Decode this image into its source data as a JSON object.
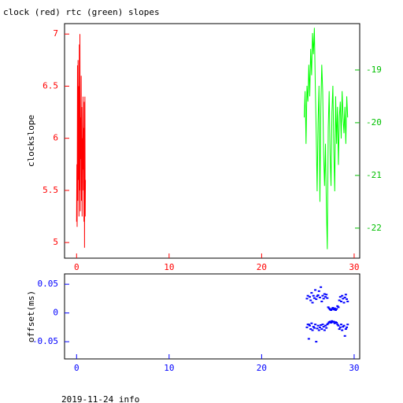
{
  "chart_data": [
    {
      "type": "line",
      "title": "clock (red) rtc (green) slopes",
      "ylabel": "clockslope",
      "xlim": [
        -1.3,
        30.6
      ],
      "xticks": [
        0,
        10,
        20,
        30
      ],
      "ylim": [
        4.85,
        7.1
      ],
      "yticks": [
        5,
        5.5,
        6,
        6.5,
        7
      ],
      "y2lim": [
        -22.57,
        -18.12
      ],
      "y2ticks": [
        -22,
        -21,
        -20,
        -19
      ],
      "series": [
        {
          "color": "#ff0000",
          "x": [
            0.0,
            0.03,
            0.06,
            0.1,
            0.13,
            0.16,
            0.2,
            0.23,
            0.26,
            0.3,
            0.33,
            0.36,
            0.4,
            0.43,
            0.46,
            0.5,
            0.53,
            0.56,
            0.6,
            0.63,
            0.66,
            0.7,
            0.73,
            0.76,
            0.8,
            0.83,
            0.86,
            0.9,
            0.93,
            0.96
          ],
          "values": [
            5.2,
            5.75,
            5.15,
            6.7,
            5.4,
            6.75,
            5.6,
            6.5,
            5.25,
            6.9,
            5.5,
            7.0,
            5.3,
            6.2,
            5.8,
            6.6,
            5.4,
            6.3,
            5.25,
            6.0,
            5.7,
            6.4,
            5.5,
            6.1,
            5.2,
            6.35,
            4.95,
            6.4,
            5.25,
            5.6
          ]
        },
        {
          "color": "#00ff00",
          "axis": "y2",
          "x": [
            24.6,
            24.7,
            24.8,
            24.9,
            25.0,
            25.1,
            25.2,
            25.3,
            25.4,
            25.5,
            25.6,
            25.7,
            25.8,
            25.9,
            26.0,
            26.1,
            26.2,
            26.3,
            26.4,
            26.5,
            26.6,
            26.7,
            26.8,
            26.9,
            27.0,
            27.1,
            27.2,
            27.3,
            27.4,
            27.5,
            27.6,
            27.7,
            27.8,
            27.9,
            28.0,
            28.1,
            28.2,
            28.3,
            28.4,
            28.5,
            28.6,
            28.7,
            28.8,
            28.9,
            29.0,
            29.1,
            29.2,
            29.3
          ],
          "values": [
            -19.9,
            -19.4,
            -20.4,
            -19.3,
            -19.6,
            -18.9,
            -19.5,
            -18.6,
            -19.1,
            -18.3,
            -18.7,
            -18.2,
            -19.3,
            -20.2,
            -21.3,
            -20.0,
            -19.3,
            -21.5,
            -19.7,
            -18.9,
            -19.4,
            -20.6,
            -21.2,
            -20.4,
            -21.6,
            -22.4,
            -20.1,
            -19.4,
            -20.6,
            -21.2,
            -19.8,
            -19.3,
            -20.5,
            -21.3,
            -19.5,
            -20.4,
            -19.7,
            -20.8,
            -19.9,
            -19.6,
            -20.3,
            -19.4,
            -19.9,
            -20.2,
            -19.7,
            -20.4,
            -19.5,
            -19.9
          ]
        }
      ]
    },
    {
      "type": "scatter",
      "ylabel": "offset(ms)",
      "xlim": [
        -1.3,
        30.6
      ],
      "xticks": [
        0,
        10,
        20,
        30
      ],
      "ylim": [
        -0.08,
        0.068
      ],
      "yticks": [
        -0.05,
        0,
        0.05
      ],
      "series": [
        {
          "color": "#0000ff",
          "x": [
            24.9,
            25.0,
            25.1,
            25.2,
            25.3,
            25.4,
            25.5,
            25.6,
            25.7,
            25.8,
            25.9,
            26.0,
            26.1,
            26.2,
            26.3,
            26.4,
            26.5,
            26.6,
            26.7,
            26.8,
            26.9,
            27.0,
            27.1,
            27.2,
            27.3,
            27.4,
            27.5,
            27.6,
            27.7,
            27.8,
            27.9,
            28.0,
            28.1,
            28.2,
            28.3,
            28.4,
            28.5,
            28.6,
            28.7,
            28.8,
            28.9,
            29.0,
            29.1,
            29.2,
            29.3,
            24.9,
            25.0,
            25.1,
            25.2,
            25.3,
            25.4,
            25.5,
            25.6,
            25.7,
            25.8,
            25.9,
            26.0,
            26.1,
            26.2,
            26.3,
            26.4,
            26.5,
            26.6,
            26.7,
            26.8,
            26.9,
            27.0,
            27.1,
            27.2,
            27.3,
            27.4,
            27.5,
            27.6,
            27.7,
            27.8,
            27.9,
            28.0,
            28.1,
            28.2,
            28.3,
            28.4,
            28.5,
            28.6,
            28.7,
            28.8,
            28.9,
            29.0,
            29.1,
            29.2,
            29.3
          ],
          "values": [
            0.025,
            0.03,
            -0.02,
            0.028,
            0.022,
            0.035,
            0.018,
            0.03,
            0.026,
            0.04,
            0.024,
            0.029,
            0.031,
            0.038,
            0.027,
            0.045,
            0.02,
            0.03,
            0.025,
            0.033,
            0.028,
            0.032,
            0.026,
            0.01,
            0.008,
            0.006,
            0.005,
            0.007,
            0.009,
            0.006,
            0.008,
            0.005,
            0.007,
            0.012,
            0.01,
            0.022,
            0.028,
            0.02,
            0.03,
            0.025,
            0.018,
            0.027,
            0.032,
            0.024,
            0.02,
            -0.025,
            -0.02,
            -0.045,
            -0.022,
            -0.028,
            -0.018,
            -0.03,
            -0.024,
            -0.026,
            -0.02,
            -0.05,
            -0.027,
            -0.022,
            -0.03,
            -0.025,
            -0.021,
            -0.028,
            -0.02,
            -0.024,
            -0.03,
            -0.022,
            -0.026,
            -0.02,
            -0.018,
            -0.016,
            -0.015,
            -0.017,
            -0.014,
            -0.016,
            -0.015,
            -0.018,
            -0.016,
            -0.017,
            -0.02,
            -0.022,
            -0.028,
            -0.025,
            -0.02,
            -0.03,
            -0.024,
            -0.022,
            -0.04,
            -0.028,
            -0.025,
            -0.02
          ]
        }
      ]
    }
  ],
  "footer": "2019-11-24 info"
}
